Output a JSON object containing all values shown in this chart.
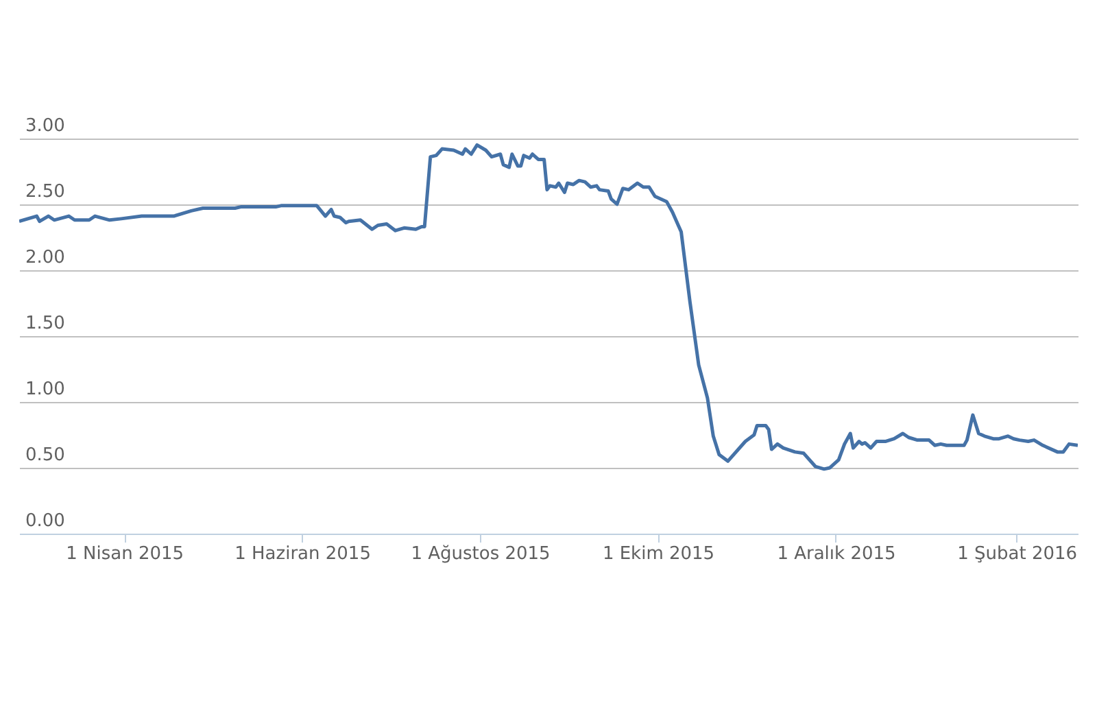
{
  "chart_data": {
    "type": "line",
    "color": "#4572a7",
    "line_style": "solid",
    "marker": "none",
    "grid": "y",
    "xlim": [
      "2015-02-24",
      "2016-02-22"
    ],
    "xticks": [
      {
        "value": "2015-04-01",
        "label": "1 Nisan 2015"
      },
      {
        "value": "2015-06-01",
        "label": "1 Haziran 2015"
      },
      {
        "value": "2015-08-01",
        "label": "1 Ağustos 2015"
      },
      {
        "value": "2015-10-01",
        "label": "1 Ekim 2015"
      },
      {
        "value": "2015-12-01",
        "label": "1 Aralık 2015"
      },
      {
        "value": "2016-02-01",
        "label": "1 Şubat 2016"
      }
    ],
    "ylim": [
      0,
      4.05
    ],
    "yticks": [
      {
        "value": 0,
        "label": "0.00"
      },
      {
        "value": 0.5,
        "label": "0.50"
      },
      {
        "value": 1,
        "label": "1.00"
      },
      {
        "value": 1.5,
        "label": "1.50"
      },
      {
        "value": 2,
        "label": "2.00"
      },
      {
        "value": 2.5,
        "label": "2.50"
      },
      {
        "value": 3,
        "label": "3.00"
      }
    ],
    "x": [
      "2015-02-24",
      "2015-03-02",
      "2015-03-03",
      "2015-03-06",
      "2015-03-08",
      "2015-03-13",
      "2015-03-15",
      "2015-03-20",
      "2015-03-22",
      "2015-03-27",
      "2015-03-31",
      "2015-04-07",
      "2015-04-18",
      "2015-04-24",
      "2015-04-28",
      "2015-05-09",
      "2015-05-11",
      "2015-05-23",
      "2015-05-25",
      "2015-06-06",
      "2015-06-09",
      "2015-06-11",
      "2015-06-12",
      "2015-06-14",
      "2015-06-16",
      "2015-06-17",
      "2015-06-21",
      "2015-06-25",
      "2015-06-27",
      "2015-06-30",
      "2015-07-03",
      "2015-07-06",
      "2015-07-10",
      "2015-07-12",
      "2015-07-13",
      "2015-07-15",
      "2015-07-17",
      "2015-07-19",
      "2015-07-23",
      "2015-07-26",
      "2015-07-27",
      "2015-07-29",
      "2015-07-31",
      "2015-08-03",
      "2015-08-05",
      "2015-08-08",
      "2015-08-09",
      "2015-08-11",
      "2015-08-12",
      "2015-08-14",
      "2015-08-15",
      "2015-08-16",
      "2015-08-18",
      "2015-08-19",
      "2015-08-21",
      "2015-08-23",
      "2015-08-24",
      "2015-08-25",
      "2015-08-27",
      "2015-08-28",
      "2015-08-30",
      "2015-08-31",
      "2015-09-02",
      "2015-09-04",
      "2015-09-06",
      "2015-09-08",
      "2015-09-10",
      "2015-09-11",
      "2015-09-14",
      "2015-09-15",
      "2015-09-17",
      "2015-09-19",
      "2015-09-21",
      "2015-09-24",
      "2015-09-26",
      "2015-09-28",
      "2015-09-30",
      "2015-10-04",
      "2015-10-06",
      "2015-10-08",
      "2015-10-09",
      "2015-10-12",
      "2015-10-15",
      "2015-10-18",
      "2015-10-20",
      "2015-10-22",
      "2015-10-25",
      "2015-10-31",
      "2015-11-03",
      "2015-11-04",
      "2015-11-07",
      "2015-11-08",
      "2015-11-09",
      "2015-11-11",
      "2015-11-13",
      "2015-11-17",
      "2015-11-20",
      "2015-11-24",
      "2015-11-27",
      "2015-11-29",
      "2015-12-02",
      "2015-12-04",
      "2015-12-06",
      "2015-12-07",
      "2015-12-09",
      "2015-12-10",
      "2015-12-11",
      "2015-12-13",
      "2015-12-15",
      "2015-12-18",
      "2015-12-21",
      "2015-12-24",
      "2015-12-26",
      "2015-12-29",
      "2016-01-02",
      "2016-01-04",
      "2016-01-06",
      "2016-01-08",
      "2016-01-11",
      "2016-01-14",
      "2016-01-15",
      "2016-01-17",
      "2016-01-19",
      "2016-01-21",
      "2016-01-24",
      "2016-01-26",
      "2016-01-29",
      "2016-01-31",
      "2016-02-02",
      "2016-02-05",
      "2016-02-07",
      "2016-02-10",
      "2016-02-15",
      "2016-02-17",
      "2016-02-19",
      "2016-02-22"
    ],
    "values": [
      2.37,
      2.41,
      2.37,
      2.41,
      2.38,
      2.41,
      2.38,
      2.38,
      2.41,
      2.38,
      2.39,
      2.41,
      2.41,
      2.45,
      2.47,
      2.47,
      2.48,
      2.48,
      2.49,
      2.49,
      2.41,
      2.46,
      2.41,
      2.4,
      2.36,
      2.37,
      2.38,
      2.31,
      2.34,
      2.35,
      2.3,
      2.32,
      2.31,
      2.33,
      2.33,
      2.86,
      2.87,
      2.92,
      2.91,
      2.88,
      2.92,
      2.88,
      2.95,
      2.91,
      2.86,
      2.88,
      2.8,
      2.78,
      2.88,
      2.79,
      2.79,
      2.87,
      2.85,
      2.88,
      2.84,
      2.84,
      2.61,
      2.64,
      2.63,
      2.66,
      2.59,
      2.66,
      2.65,
      2.68,
      2.67,
      2.63,
      2.64,
      2.61,
      2.6,
      2.54,
      2.5,
      2.62,
      2.61,
      2.66,
      2.63,
      2.63,
      2.56,
      2.52,
      2.44,
      2.34,
      2.29,
      1.76,
      1.28,
      1.03,
      0.74,
      0.6,
      0.55,
      0.7,
      0.75,
      0.82,
      0.82,
      0.79,
      0.64,
      0.68,
      0.65,
      0.62,
      0.61,
      0.51,
      0.49,
      0.5,
      0.56,
      0.68,
      0.76,
      0.65,
      0.7,
      0.68,
      0.69,
      0.65,
      0.7,
      0.7,
      0.72,
      0.76,
      0.73,
      0.71,
      0.71,
      0.67,
      0.68,
      0.67,
      0.67,
      0.67,
      0.71,
      0.9,
      0.76,
      0.74,
      0.72,
      0.72,
      0.74,
      0.72,
      0.71,
      0.7,
      0.71,
      0.67,
      0.62,
      0.62,
      0.68,
      0.67
    ]
  }
}
